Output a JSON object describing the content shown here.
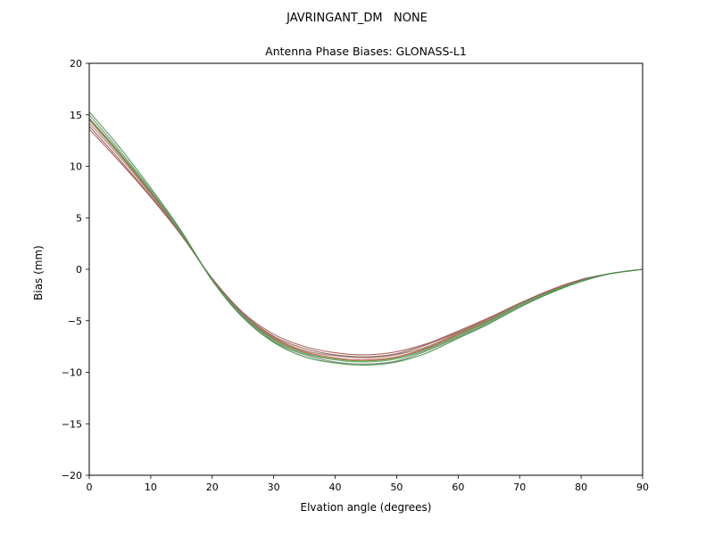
{
  "figure": {
    "suptitle": "JAVRINGANT_DM   NONE"
  },
  "chart_data": {
    "type": "line",
    "title": "Antenna Phase Biases: GLONASS-L1",
    "xlabel": "Elvation angle (degrees)",
    "ylabel": "Bias (mm)",
    "xlim": [
      0,
      90
    ],
    "ylim": [
      -20,
      20
    ],
    "x_ticks": [
      0,
      10,
      20,
      30,
      40,
      50,
      60,
      70,
      80,
      90
    ],
    "y_ticks": [
      -20,
      -15,
      -10,
      -5,
      0,
      5,
      10,
      15,
      20
    ],
    "grid": false,
    "legend": "none",
    "x": [
      0,
      5,
      10,
      15,
      20,
      25,
      30,
      35,
      40,
      45,
      50,
      55,
      60,
      65,
      70,
      75,
      80,
      85,
      90
    ],
    "series": [
      {
        "name": "series-1",
        "color": "#a65353",
        "values": [
          13.6,
          10.4,
          7.0,
          3.3,
          -0.9,
          -4.2,
          -6.3,
          -7.5,
          -8.1,
          -8.3,
          -8.0,
          -7.2,
          -6.0,
          -4.7,
          -3.3,
          -2.0,
          -1.0,
          -0.4,
          0.0
        ]
      },
      {
        "name": "series-2",
        "color": "#8c564b",
        "values": [
          13.9,
          10.6,
          7.1,
          3.3,
          -0.9,
          -4.3,
          -6.5,
          -7.7,
          -8.3,
          -8.5,
          -8.2,
          -7.3,
          -6.1,
          -4.8,
          -3.3,
          -2.1,
          -1.0,
          -0.4,
          0.0
        ]
      },
      {
        "name": "series-3",
        "color": "#937860",
        "values": [
          14.2,
          10.9,
          7.3,
          3.4,
          -1.0,
          -4.4,
          -6.6,
          -7.9,
          -8.4,
          -8.6,
          -8.3,
          -7.5,
          -6.2,
          -4.9,
          -3.4,
          -2.1,
          -1.1,
          -0.4,
          0.0
        ]
      },
      {
        "name": "series-4",
        "color": "#c44e52",
        "values": [
          14.5,
          11.1,
          7.4,
          3.5,
          -1.0,
          -4.5,
          -6.7,
          -8.0,
          -8.6,
          -8.8,
          -8.5,
          -7.6,
          -6.3,
          -5.0,
          -3.5,
          -2.2,
          -1.1,
          -0.4,
          0.0
        ]
      },
      {
        "name": "series-5",
        "color": "#6b8e23",
        "values": [
          14.6,
          11.2,
          7.5,
          3.5,
          -1.0,
          -4.5,
          -6.8,
          -8.1,
          -8.7,
          -8.9,
          -8.6,
          -7.7,
          -6.4,
          -5.0,
          -3.5,
          -2.2,
          -1.1,
          -0.4,
          0.0
        ]
      },
      {
        "name": "series-6",
        "color": "#55a868",
        "values": [
          14.7,
          11.3,
          7.6,
          3.5,
          -1.0,
          -4.5,
          -6.9,
          -8.2,
          -8.8,
          -9.0,
          -8.7,
          -7.8,
          -6.5,
          -5.1,
          -3.5,
          -2.2,
          -1.1,
          -0.4,
          0.0
        ]
      },
      {
        "name": "series-7",
        "color": "#7f7f7f",
        "values": [
          15.0,
          11.5,
          7.7,
          3.6,
          -1.0,
          -4.6,
          -7.0,
          -8.3,
          -9.0,
          -9.2,
          -8.9,
          -7.9,
          -6.6,
          -5.2,
          -3.6,
          -2.3,
          -1.1,
          -0.4,
          0.0
        ]
      },
      {
        "name": "series-8",
        "color": "#3a923a",
        "values": [
          15.3,
          11.8,
          7.9,
          3.7,
          -1.1,
          -4.7,
          -7.1,
          -8.5,
          -9.1,
          -9.3,
          -9.0,
          -8.1,
          -6.7,
          -5.3,
          -3.7,
          -2.3,
          -1.2,
          -0.4,
          0.0
        ]
      }
    ]
  }
}
